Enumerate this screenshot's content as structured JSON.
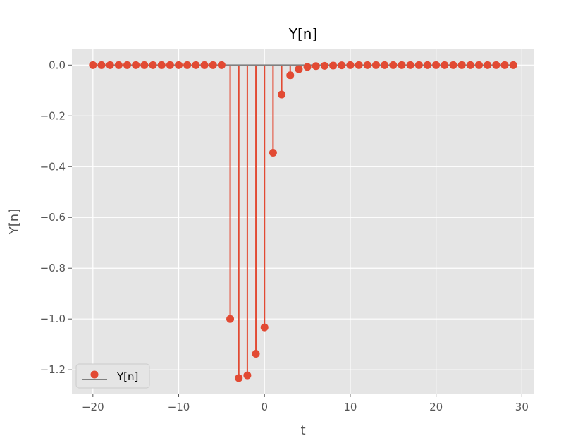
{
  "chart_data": {
    "type": "stem",
    "title": "Y[n]",
    "xlabel": "t",
    "ylabel": "Y[n]",
    "xlim": [
      -22.45,
      31.45
    ],
    "ylim": [
      -1.294,
      0.062
    ],
    "xticks": [
      -20,
      -10,
      0,
      10,
      20,
      30
    ],
    "xtick_labels": [
      "−20",
      "−10",
      "0",
      "10",
      "20",
      "30"
    ],
    "yticks": [
      0.0,
      -0.2,
      -0.4,
      -0.6,
      -0.8,
      -1.0,
      -1.2
    ],
    "ytick_labels": [
      "0.0",
      "−0.2",
      "−0.4",
      "−0.6",
      "−0.8",
      "−1.0",
      "−1.2"
    ],
    "grid": true,
    "legend": {
      "position": "lower-left",
      "entries": [
        "Y[n]"
      ]
    },
    "colors": {
      "marker": "#E24A33",
      "baseline": "#808080",
      "background": "#E5E5E5",
      "grid": "#FFFFFF"
    },
    "series": [
      {
        "name": "Y[n]",
        "x": [
          -20,
          -19,
          -18,
          -17,
          -16,
          -15,
          -14,
          -13,
          -12,
          -11,
          -10,
          -9,
          -8,
          -7,
          -6,
          -5,
          -4,
          -3,
          -2,
          -1,
          0,
          1,
          2,
          3,
          4,
          5,
          6,
          7,
          8,
          9,
          10,
          11,
          12,
          13,
          14,
          15,
          16,
          17,
          18,
          19,
          20,
          21,
          22,
          23,
          24,
          25,
          26,
          27,
          28,
          29
        ],
        "y": [
          0,
          0,
          0,
          0,
          0,
          0,
          0,
          0,
          0,
          0,
          0,
          0,
          0,
          0,
          0,
          0,
          -1.0,
          -1.233,
          -1.222,
          -1.137,
          -1.033,
          -0.345,
          -0.116,
          -0.04,
          -0.016,
          -0.007,
          -0.004,
          -0.003,
          -0.002,
          -0.001,
          0,
          0,
          0,
          0,
          0,
          0,
          0,
          0,
          0,
          0,
          0,
          0,
          0,
          0,
          0,
          0,
          0,
          0,
          0,
          0
        ]
      }
    ]
  }
}
